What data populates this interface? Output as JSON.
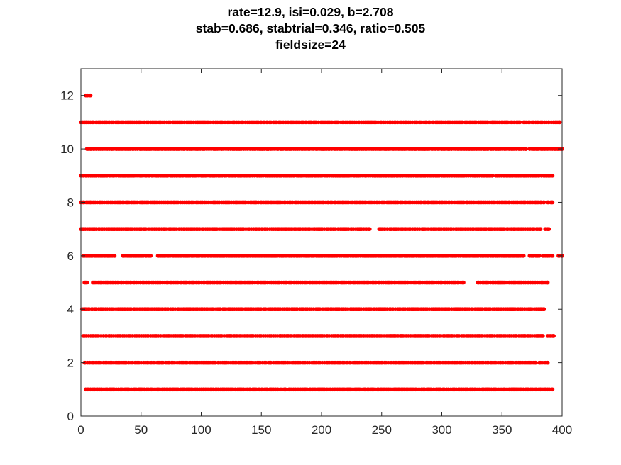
{
  "chart_data": {
    "type": "scatter",
    "title_lines": [
      "rate=12.9, isi=0.029, b=2.708",
      "stab=0.686, stabtrial=0.346, ratio=0.505",
      "fieldsize=24"
    ],
    "xlabel": "",
    "ylabel": "",
    "xlim": [
      0,
      400
    ],
    "ylim": [
      0,
      13
    ],
    "xticks": [
      "0",
      "50",
      "100",
      "150",
      "200",
      "250",
      "300",
      "350",
      "400"
    ],
    "yticks": [
      "0",
      "2",
      "4",
      "6",
      "8",
      "10",
      "12"
    ],
    "grid": false,
    "marker_color": "#ff0000",
    "series": [
      {
        "y": 1,
        "spans": [
          [
            4,
            155
          ],
          [
            157,
            170
          ],
          [
            173,
            188
          ],
          [
            190,
            392
          ]
        ]
      },
      {
        "y": 2,
        "spans": [
          [
            3,
            112
          ],
          [
            114,
            140
          ],
          [
            141,
            158
          ],
          [
            160,
            190
          ],
          [
            192,
            378
          ],
          [
            381,
            388
          ]
        ]
      },
      {
        "y": 3,
        "spans": [
          [
            2,
            362
          ],
          [
            364,
            384
          ],
          [
            388,
            393
          ]
        ]
      },
      {
        "y": 4,
        "spans": [
          [
            1,
            116
          ],
          [
            118,
            180
          ],
          [
            182,
            222
          ],
          [
            224,
            385
          ]
        ]
      },
      {
        "y": 5,
        "spans": [
          [
            3,
            5
          ],
          [
            10,
            300
          ],
          [
            302,
            318
          ],
          [
            330,
            388
          ]
        ]
      },
      {
        "y": 6,
        "spans": [
          [
            2,
            20
          ],
          [
            22,
            28
          ],
          [
            35,
            58
          ],
          [
            64,
            368
          ],
          [
            373,
            381
          ],
          [
            384,
            392
          ],
          [
            397,
            400
          ]
        ]
      },
      {
        "y": 7,
        "spans": [
          [
            0,
            240
          ],
          [
            248,
            382
          ],
          [
            386,
            389
          ]
        ]
      },
      {
        "y": 8,
        "spans": [
          [
            0,
            115
          ],
          [
            117,
            195
          ],
          [
            197,
            385
          ],
          [
            388,
            392
          ]
        ]
      },
      {
        "y": 9,
        "spans": [
          [
            0,
            138
          ],
          [
            140,
            342
          ],
          [
            345,
            392
          ]
        ]
      },
      {
        "y": 10,
        "spans": [
          [
            5,
            156
          ],
          [
            158,
            308
          ],
          [
            310,
            370
          ],
          [
            373,
            400
          ]
        ]
      },
      {
        "y": 11,
        "spans": [
          [
            0,
            365
          ],
          [
            368,
            376
          ],
          [
            378,
            389
          ],
          [
            391,
            398
          ]
        ]
      },
      {
        "y": 12,
        "spans": [
          [
            4,
            8
          ]
        ]
      }
    ]
  }
}
